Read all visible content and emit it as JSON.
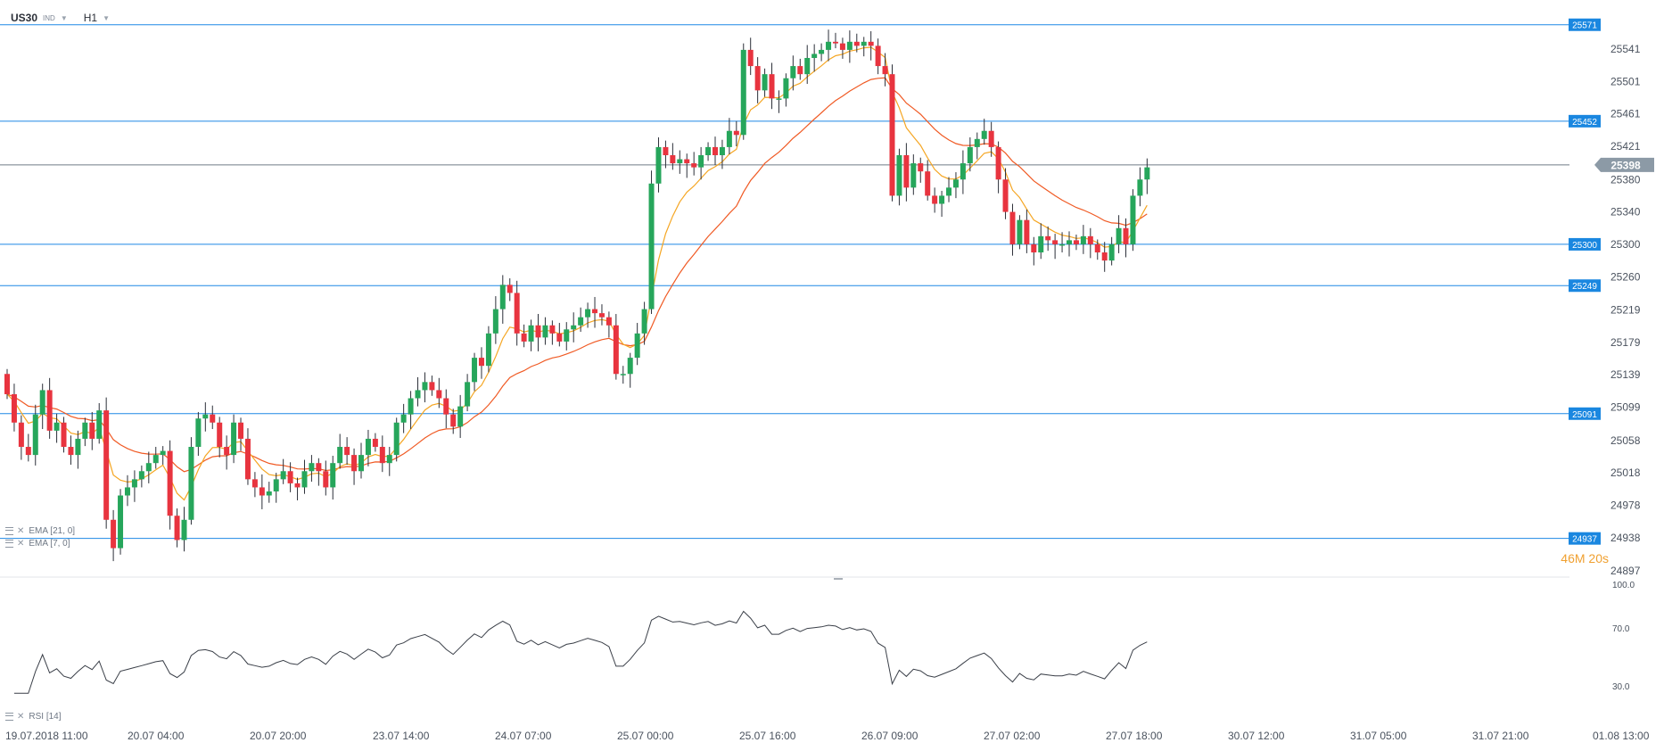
{
  "header": {
    "symbol": "US30",
    "symbol_type": "IND",
    "timeframe": "H1"
  },
  "indicators": [
    {
      "label": "EMA [21, 0]",
      "color": "#f05a24"
    },
    {
      "label": "EMA [7, 0]",
      "color": "#f5a623"
    }
  ],
  "rsi_panel": {
    "label": "RSI [14]",
    "levels": [
      "100.0",
      "70.0",
      "30.0"
    ]
  },
  "timer": {
    "minutes": "46",
    "m": "M",
    "seconds": "20",
    "s": "s"
  },
  "colors": {
    "up": "#26a65b",
    "down": "#e8343f",
    "hline": "#1e88e5",
    "price_tag": "#8c9aa6",
    "grid_text": "#4a525e"
  },
  "chart_data": {
    "type": "candlestick",
    "symbol": "US30",
    "timeframe": "H1",
    "ylim": [
      24877,
      25580
    ],
    "y_ticks": [
      25541,
      25501,
      25461,
      25421,
      25380,
      25340,
      25300,
      25260,
      25219,
      25179,
      25139,
      25099,
      25058,
      25018,
      24978,
      24938,
      24897
    ],
    "x_ticks": [
      "19.07.2018  11:00",
      "20.07  04:00",
      "20.07  20:00",
      "23.07  14:00",
      "24.07  07:00",
      "25.07  00:00",
      "25.07  16:00",
      "26.07  09:00",
      "27.07  02:00",
      "27.07  18:00",
      "30.07  12:00",
      "31.07  05:00",
      "31.07  21:00",
      "01.08  13:00"
    ],
    "horizontal_levels": [
      25571,
      25452,
      25300,
      25249,
      25091,
      24937
    ],
    "current_price": 25398,
    "close": [
      25115,
      25080,
      25050,
      25040,
      25090,
      25120,
      25070,
      25080,
      25050,
      25040,
      25060,
      25080,
      25060,
      25095,
      24960,
      24925,
      24990,
      25000,
      25010,
      25020,
      25030,
      25040,
      25045,
      24965,
      24935,
      24960,
      25050,
      25085,
      25090,
      25080,
      25050,
      25040,
      25080,
      25060,
      25010,
      25000,
      24990,
      24995,
      25010,
      25020,
      25005,
      25000,
      25020,
      25030,
      25020,
      25000,
      25030,
      25050,
      25040,
      25020,
      25040,
      25060,
      25050,
      25030,
      25040,
      25080,
      25090,
      25110,
      25120,
      25130,
      25120,
      25110,
      25090,
      25075,
      25100,
      25130,
      25160,
      25150,
      25190,
      25220,
      25250,
      25240,
      25190,
      25180,
      25200,
      25185,
      25200,
      25190,
      25180,
      25195,
      25200,
      25210,
      25220,
      25215,
      25210,
      25200,
      25140,
      25140,
      25160,
      25190,
      25220,
      25375,
      25420,
      25410,
      25400,
      25405,
      25400,
      25395,
      25410,
      25420,
      25410,
      25420,
      25440,
      25435,
      25540,
      25520,
      25490,
      25510,
      25480,
      25480,
      25505,
      25520,
      25510,
      25530,
      25535,
      25540,
      25550,
      25548,
      25540,
      25550,
      25545,
      25550,
      25545,
      25520,
      25510,
      25360,
      25410,
      25370,
      25400,
      25390,
      25360,
      25350,
      25360,
      25370,
      25380,
      25400,
      25420,
      25430,
      25440,
      25420,
      25380,
      25340,
      25300,
      25330,
      25300,
      25290,
      25310,
      25305,
      25300,
      25300,
      25305,
      25300,
      25310,
      25300,
      25290,
      25280,
      25300,
      25320,
      25300,
      25360,
      25380,
      25395
    ]
  }
}
